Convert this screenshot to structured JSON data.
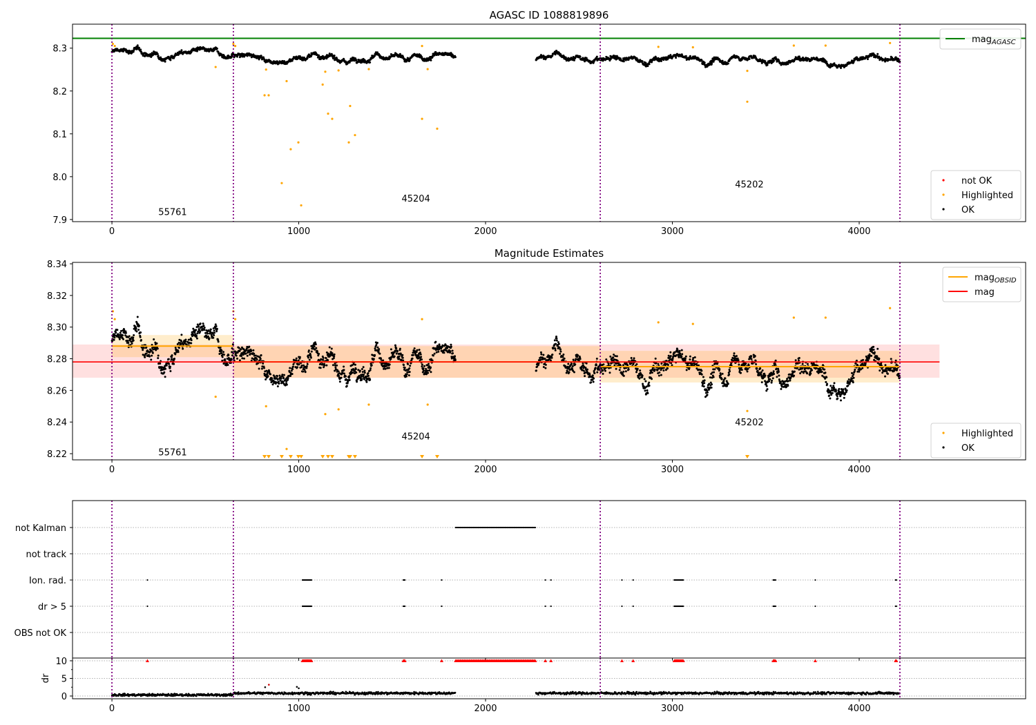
{
  "chart_data": [
    {
      "type": "scatter",
      "title": "AGASC ID 1088819896",
      "xlim": [
        -211,
        4891
      ],
      "ylim": [
        7.895,
        8.356
      ],
      "xticks": [
        0,
        1000,
        2000,
        3000,
        4000
      ],
      "yticks": [
        7.9,
        8.0,
        8.1,
        8.2,
        8.3
      ],
      "ytick_labels": [
        "7.9",
        "8.0",
        "8.1",
        "8.2",
        "8.3"
      ],
      "obsid_boundaries": [
        0,
        650,
        2614,
        4218
      ],
      "obsid_labels": [
        {
          "text": "55761",
          "x": 325,
          "y": 7.91
        },
        {
          "text": "45204",
          "x": 1627,
          "y": 7.942
        },
        {
          "text": "45202",
          "x": 3412,
          "y": 7.975
        }
      ],
      "mag_agasc": 8.323,
      "legend_top": [
        {
          "label": "mag",
          "sub": "AGASC",
          "color": "#008000"
        }
      ],
      "legend_bottom": [
        {
          "label": "not OK",
          "color": "#ff0000"
        },
        {
          "label": "Highlighted",
          "color": "#ffa500"
        },
        {
          "label": "OK",
          "color": "#000000"
        }
      ]
    },
    {
      "type": "scatter",
      "title": "Magnitude Estimates",
      "xlim": [
        -211,
        4891
      ],
      "ylim": [
        8.2161,
        8.3409
      ],
      "xticks": [
        0,
        1000,
        2000,
        3000,
        4000
      ],
      "yticks": [
        8.22,
        8.24,
        8.26,
        8.28,
        8.3,
        8.32,
        8.34
      ],
      "ytick_labels": [
        "8.22",
        "8.24",
        "8.26",
        "8.28",
        "8.30",
        "8.32",
        "8.34"
      ],
      "obsid_labels": [
        {
          "text": "55761",
          "x": 325,
          "y": 8.219
        },
        {
          "text": "45204",
          "x": 1627,
          "y": 8.229
        },
        {
          "text": "45202",
          "x": 3412,
          "y": 8.238
        }
      ],
      "mag": {
        "value": 8.278,
        "band": [
          8.268,
          8.289
        ],
        "x_range": [
          -211,
          4430
        ]
      },
      "mag_obsid": [
        {
          "obsid": "55761",
          "x": [
            0,
            650
          ],
          "value": 8.288,
          "band": [
            8.281,
            8.295
          ]
        },
        {
          "obsid": "45204",
          "x": [
            650,
            2614
          ],
          "value": 8.278,
          "band": [
            8.268,
            8.288
          ]
        },
        {
          "obsid": "45202",
          "x": [
            2614,
            4218
          ],
          "value": 8.275,
          "band": [
            8.265,
            8.285
          ]
        }
      ],
      "legend_top": [
        {
          "label": "mag",
          "sub": "OBSID",
          "color": "#ffa500"
        },
        {
          "label": "mag",
          "sub": "",
          "color": "#ff0000"
        }
      ],
      "legend_bottom": [
        {
          "label": "Highlighted",
          "color": "#ffa500"
        },
        {
          "label": "OK",
          "color": "#000000"
        }
      ]
    },
    {
      "type": "scatter",
      "title": "",
      "categories": [
        "not Kalman",
        "not track",
        "Ion. rad.",
        "dr > 5",
        "OBS not OK"
      ],
      "flags": {
        "not Kalman": [
          [
            1840,
            2270
          ]
        ],
        "not track": [],
        "Ion. rad.": [
          [
            190,
            190
          ],
          [
            1020,
            1070
          ],
          [
            1560,
            1570
          ],
          [
            1765,
            1765
          ],
          [
            2320,
            2320
          ],
          [
            2350,
            2350
          ],
          [
            2730,
            2730
          ],
          [
            2790,
            2790
          ],
          [
            3010,
            3060
          ],
          [
            3540,
            3555
          ],
          [
            3765,
            3765
          ],
          [
            4195,
            4200
          ]
        ],
        "dr > 5": [
          [
            190,
            190
          ],
          [
            1020,
            1070
          ],
          [
            1560,
            1570
          ],
          [
            1765,
            1765
          ],
          [
            2320,
            2320
          ],
          [
            2350,
            2350
          ],
          [
            2730,
            2730
          ],
          [
            2790,
            2790
          ],
          [
            3010,
            3060
          ],
          [
            3540,
            3555
          ],
          [
            3765,
            3765
          ],
          [
            4195,
            4200
          ]
        ],
        "OBS not OK": []
      }
    },
    {
      "type": "scatter",
      "ylabel": "dr",
      "ylim": [
        -0.78,
        10.78
      ],
      "yticks": [
        0,
        5,
        10
      ],
      "ytick_labels": [
        "0",
        "5",
        "10"
      ],
      "xticks": [
        0,
        1000,
        2000,
        3000,
        4000
      ],
      "dr_typical": [
        {
          "x": [
            0,
            650
          ],
          "mean": 0.3
        },
        {
          "x": [
            650,
            4218
          ],
          "mean": 0.8
        }
      ],
      "dr_outliers": [
        {
          "x": 820,
          "y": 2.5
        },
        {
          "x": 840,
          "y": 3.2
        },
        {
          "x": 990,
          "y": 2.6
        },
        {
          "x": 1000,
          "y": 2.2
        }
      ]
    }
  ],
  "data_series": {
    "segments": [
      {
        "obsid": "55761",
        "x": [
          0,
          650
        ],
        "mean": 8.289
      },
      {
        "obsid": "45204",
        "x": [
          650,
          1840
        ],
        "mean": 8.278
      },
      {
        "obsid": "45204",
        "x": [
          2270,
          2614
        ],
        "mean": 8.277
      },
      {
        "obsid": "45202",
        "x": [
          2614,
          4218
        ],
        "mean": 8.273
      }
    ],
    "highlighted": [
      [
        5,
        8.31
      ],
      [
        15,
        8.305
      ],
      [
        555,
        8.256
      ],
      [
        650,
        8.31
      ],
      [
        660,
        8.305
      ],
      [
        817,
        8.19
      ],
      [
        825,
        8.25
      ],
      [
        839,
        8.19
      ],
      [
        909,
        7.985
      ],
      [
        935,
        8.223
      ],
      [
        957,
        8.064
      ],
      [
        998,
        8.08
      ],
      [
        1013,
        7.933
      ],
      [
        1128,
        8.215
      ],
      [
        1142,
        8.245
      ],
      [
        1157,
        8.147
      ],
      [
        1179,
        8.135
      ],
      [
        1213,
        8.248
      ],
      [
        1268,
        8.08
      ],
      [
        1275,
        8.165
      ],
      [
        1301,
        8.097
      ],
      [
        1375,
        8.251
      ],
      [
        1660,
        8.135
      ],
      [
        1690,
        8.251
      ],
      [
        1741,
        8.112
      ],
      [
        1660,
        8.305
      ],
      [
        2925,
        8.303
      ],
      [
        3110,
        8.302
      ],
      [
        3401,
        8.175
      ],
      [
        3401,
        8.247
      ],
      [
        3650,
        8.306
      ],
      [
        3820,
        8.306
      ],
      [
        4165,
        8.312
      ]
    ]
  }
}
